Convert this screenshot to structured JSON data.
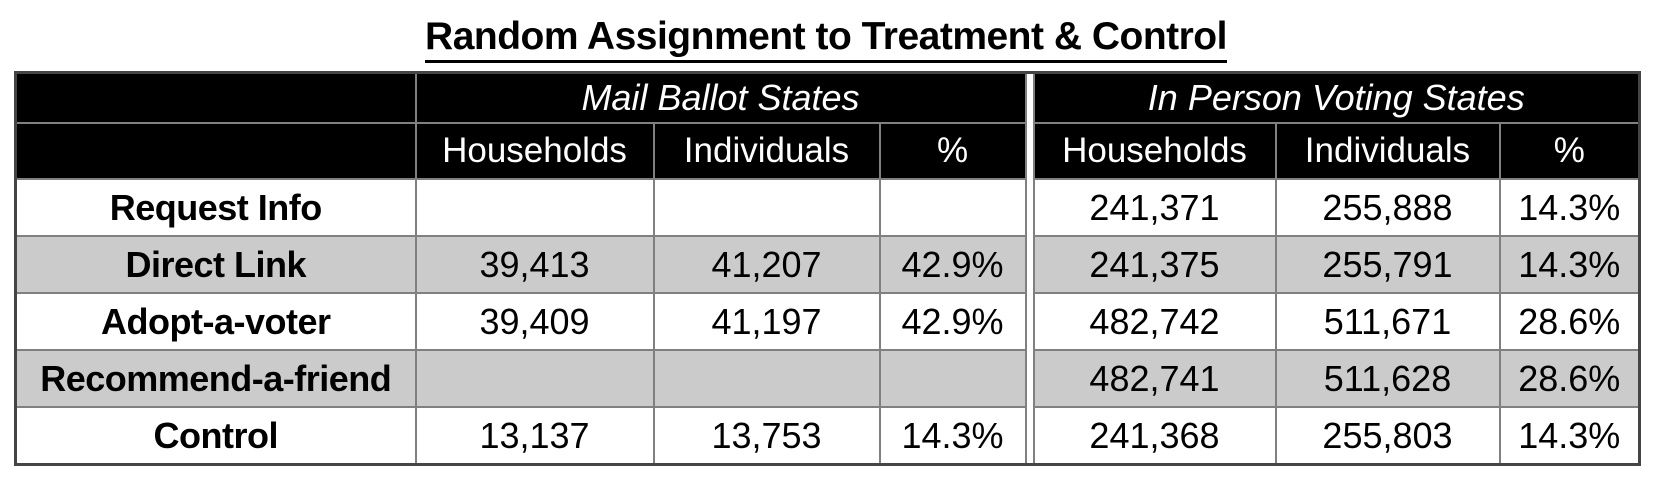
{
  "title": "Random Assignment to Treatment & Control",
  "table": {
    "group_headers": {
      "mail": "Mail Ballot States",
      "in_person": "In Person Voting States"
    },
    "column_headers": {
      "households": "Households",
      "individuals": "Individuals",
      "percent": "%"
    },
    "rows": [
      {
        "label": "Request Info",
        "mail": {
          "households": "",
          "individuals": "",
          "percent": ""
        },
        "in_person": {
          "households": "241,371",
          "individuals": "255,888",
          "percent": "14.3%"
        }
      },
      {
        "label": "Direct Link",
        "mail": {
          "households": "39,413",
          "individuals": "41,207",
          "percent": "42.9%"
        },
        "in_person": {
          "households": "241,375",
          "individuals": "255,791",
          "percent": "14.3%"
        }
      },
      {
        "label": "Adopt-a-voter",
        "mail": {
          "households": "39,409",
          "individuals": "41,197",
          "percent": "42.9%"
        },
        "in_person": {
          "households": "482,742",
          "individuals": "511,671",
          "percent": "28.6%"
        }
      },
      {
        "label": "Recommend-a-friend",
        "mail": {
          "households": "",
          "individuals": "",
          "percent": ""
        },
        "in_person": {
          "households": "482,741",
          "individuals": "511,628",
          "percent": "28.6%"
        }
      },
      {
        "label": "Control",
        "mail": {
          "households": "13,137",
          "individuals": "13,753",
          "percent": "14.3%"
        },
        "in_person": {
          "households": "241,368",
          "individuals": "255,803",
          "percent": "14.3%"
        }
      }
    ]
  },
  "colors": {
    "header_bg": "#000000",
    "header_text": "#ffffff",
    "stripe_grey": "#cbcbcb",
    "border_grey": "#808080",
    "text": "#000000"
  }
}
